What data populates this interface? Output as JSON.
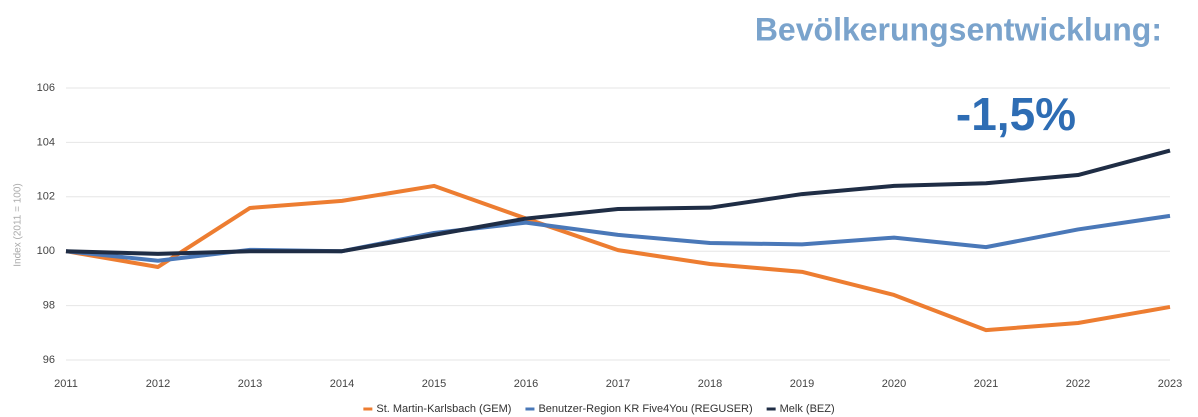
{
  "chart_data": {
    "type": "line",
    "title": "Bevölkerungsentwicklung:",
    "subtitle": "-1,5%",
    "y_label": "Index (2011 = 100)",
    "categories": [
      "2011",
      "2012",
      "2013",
      "2014",
      "2015",
      "2016",
      "2017",
      "2018",
      "2019",
      "2020",
      "2021",
      "2022",
      "2023"
    ],
    "series": [
      {
        "name": "St. Martin-Karlsbach (GEM)",
        "color": "#ed7d31",
        "values": [
          100,
          99.42,
          101.59,
          101.85,
          102.4,
          101.2,
          100.04,
          99.53,
          99.24,
          98.39,
          97.1,
          97.36,
          97.95
        ]
      },
      {
        "name": "Benutzer-Region KR Five4You (REGUSER)",
        "color": "#4a78b8",
        "values": [
          100,
          99.65,
          100.05,
          100.0,
          100.67,
          101.05,
          100.6,
          100.3,
          100.25,
          100.5,
          100.15,
          100.8,
          101.3
        ]
      },
      {
        "name": "Melk (BEZ)",
        "color": "#1f2d45",
        "values": [
          100,
          99.9,
          100.0,
          100.0,
          100.6,
          101.2,
          101.55,
          101.6,
          102.1,
          102.4,
          102.5,
          102.8,
          103.7
        ]
      }
    ],
    "ylim": [
      96,
      106
    ],
    "yticks": [
      96,
      98,
      100,
      102,
      104,
      106
    ],
    "grid": true,
    "legend": "bottom"
  }
}
